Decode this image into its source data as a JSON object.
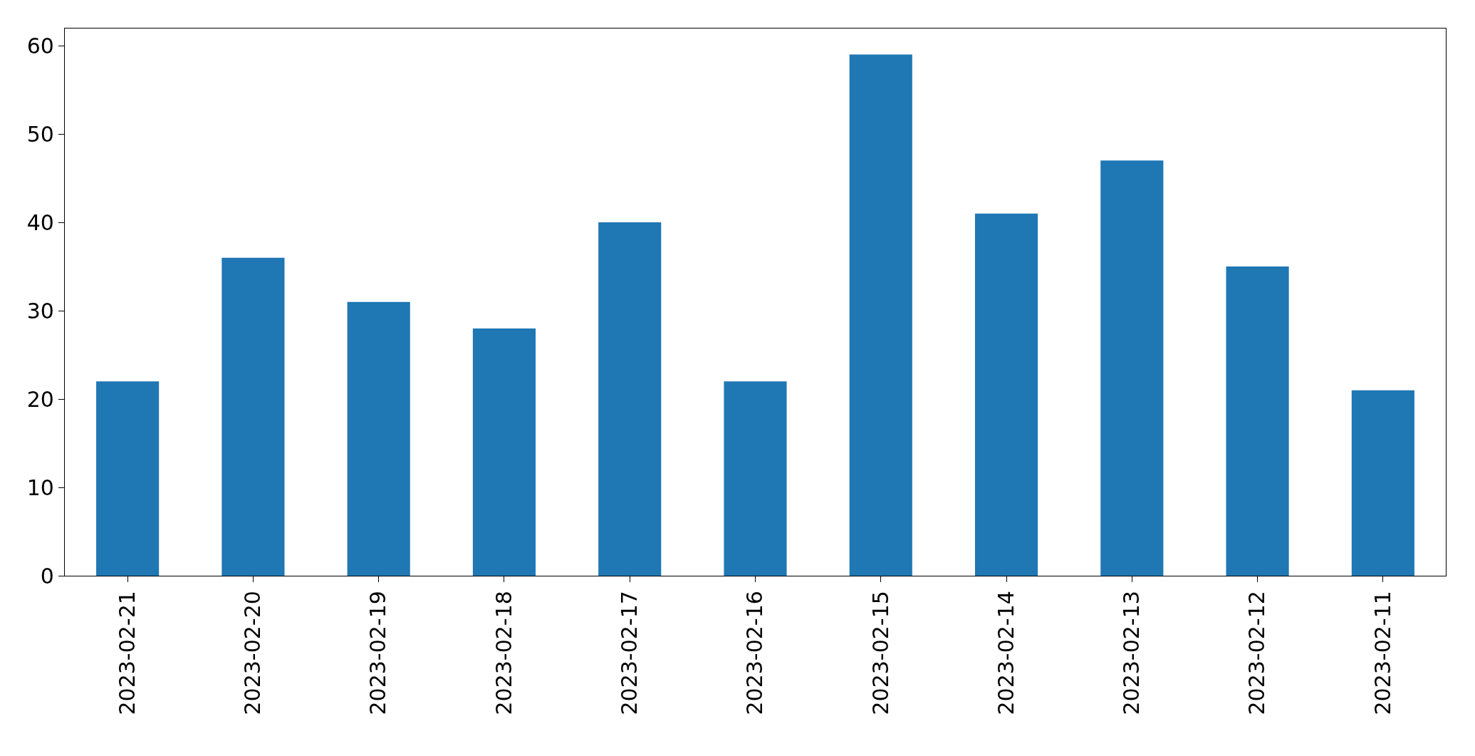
{
  "chart_data": {
    "type": "bar",
    "categories": [
      "2023-02-21",
      "2023-02-20",
      "2023-02-19",
      "2023-02-18",
      "2023-02-17",
      "2023-02-16",
      "2023-02-15",
      "2023-02-14",
      "2023-02-13",
      "2023-02-12",
      "2023-02-11"
    ],
    "values": [
      22,
      36,
      31,
      28,
      40,
      22,
      59,
      41,
      47,
      35,
      21
    ],
    "color": "#1f77b4",
    "ylim": [
      0,
      61.95
    ],
    "yticks": [
      0,
      10,
      20,
      30,
      40,
      50,
      60
    ]
  }
}
